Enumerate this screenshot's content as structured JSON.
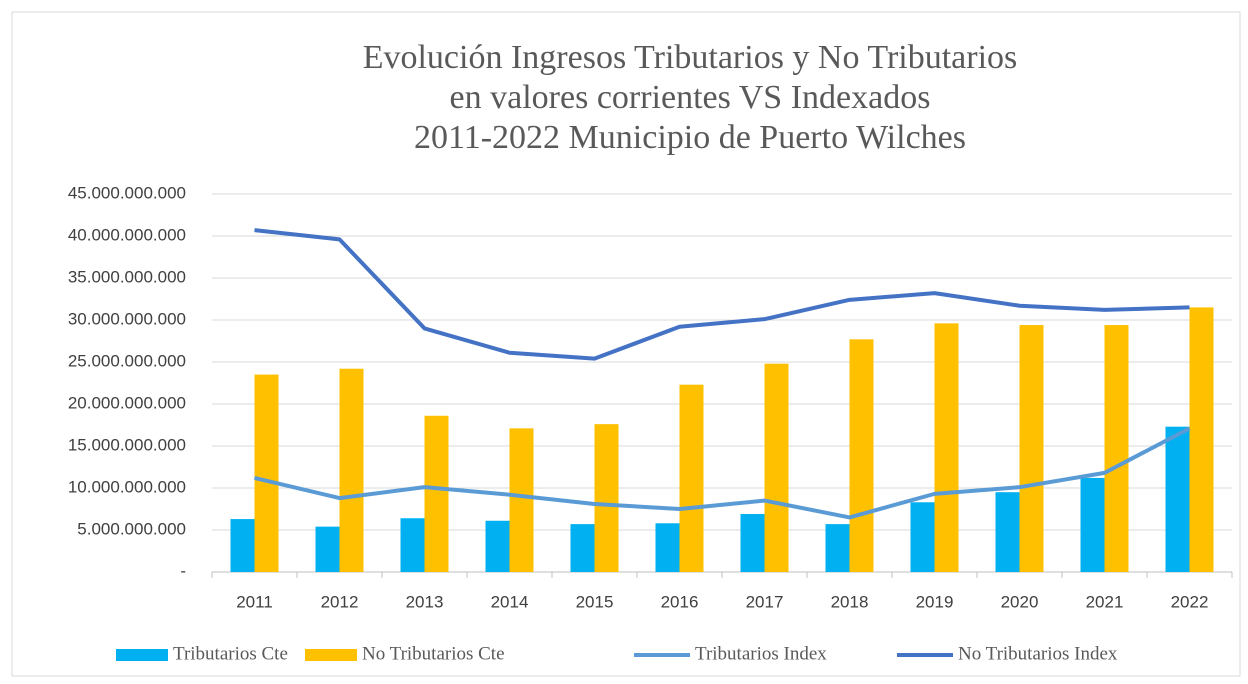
{
  "chart_data": {
    "type": "combo",
    "title": [
      "Evolución Ingresos Tributarios y No Tributarios",
      "en valores corrientes VS Indexados",
      "2011-2022 Municipio de Puerto Wilches"
    ],
    "categories": [
      "2011",
      "2012",
      "2013",
      "2014",
      "2015",
      "2016",
      "2017",
      "2018",
      "2019",
      "2020",
      "2021",
      "2022"
    ],
    "series": [
      {
        "name": "Tributarios Cte",
        "type": "bar",
        "color": "#00b0f0",
        "values": [
          6300000000,
          5400000000,
          6400000000,
          6100000000,
          5700000000,
          5800000000,
          6900000000,
          5700000000,
          8300000000,
          9500000000,
          11200000000,
          17300000000
        ]
      },
      {
        "name": "No Tributarios Cte",
        "type": "bar",
        "color": "#ffc000",
        "values": [
          23500000000,
          24200000000,
          18600000000,
          17100000000,
          17600000000,
          22300000000,
          24800000000,
          27700000000,
          29600000000,
          29400000000,
          29400000000,
          31500000000
        ]
      },
      {
        "name": "Tributarios Index",
        "type": "line",
        "color": "#5b9bd5",
        "values": [
          11200000000,
          8800000000,
          10100000000,
          9200000000,
          8100000000,
          7500000000,
          8500000000,
          6500000000,
          9300000000,
          10100000000,
          11800000000,
          17100000000
        ]
      },
      {
        "name": "No Tributarios Index",
        "type": "line",
        "color": "#4472c4",
        "values": [
          40700000000,
          39600000000,
          29000000000,
          26100000000,
          25400000000,
          29200000000,
          30100000000,
          32400000000,
          33200000000,
          31700000000,
          31200000000,
          31500000000
        ]
      }
    ],
    "ylim": [
      0,
      45000000000
    ],
    "yticks": [
      {
        "value": 0,
        "label": "-"
      },
      {
        "value": 5000000000,
        "label": "5.000.000.000"
      },
      {
        "value": 10000000000,
        "label": "10.000.000.000"
      },
      {
        "value": 15000000000,
        "label": "15.000.000.000"
      },
      {
        "value": 20000000000,
        "label": "20.000.000.000"
      },
      {
        "value": 25000000000,
        "label": "25.000.000.000"
      },
      {
        "value": 30000000000,
        "label": "30.000.000.000"
      },
      {
        "value": 35000000000,
        "label": "35.000.000.000"
      },
      {
        "value": 40000000000,
        "label": "40.000.000.000"
      },
      {
        "value": 45000000000,
        "label": "45.000.000.000"
      }
    ],
    "grid": true,
    "legend": "bottom"
  }
}
